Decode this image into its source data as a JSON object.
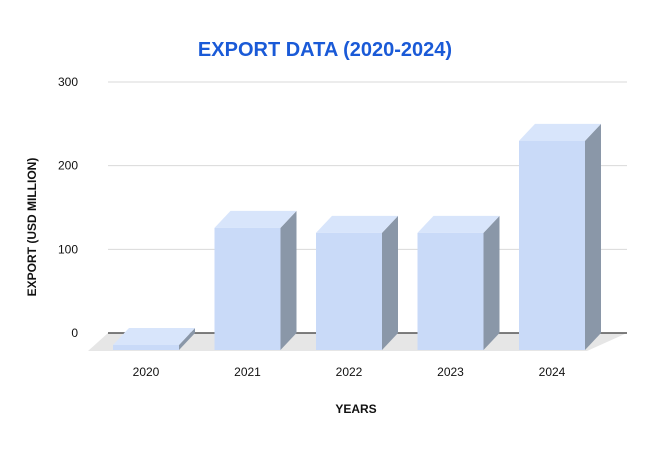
{
  "chart_data": {
    "type": "bar",
    "title": "EXPORT DATA (2020-2024)",
    "xlabel": "YEARS",
    "ylabel": "EXPORT (USD MILLION)",
    "categories": [
      "2020",
      "2021",
      "2022",
      "2023",
      "2024"
    ],
    "values": [
      6,
      146,
      140,
      140,
      250
    ],
    "ylim": [
      0,
      300
    ],
    "yticks": [
      0,
      100,
      200,
      300
    ],
    "grid": true,
    "legend": "none",
    "style": "3d-column",
    "colors": {
      "title": "#1a5ad7",
      "bar_front": "#c9daf8",
      "bar_top": "#d8e5fb",
      "bar_side": "#8a97a8",
      "floor": "#e6e6e6",
      "grid": "#d9d9d9",
      "axis": "#555555"
    }
  }
}
